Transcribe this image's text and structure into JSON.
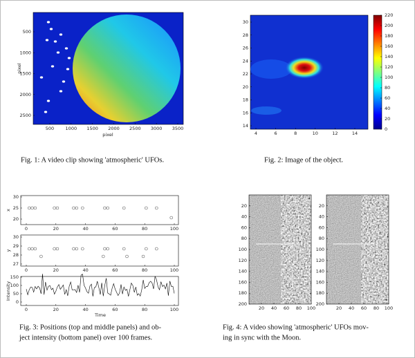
{
  "fig1": {
    "caption": "Fig. 1: A video clip showing 'atmospheric' UFOs.",
    "xlabel": "pixel",
    "ylabel": "pixel",
    "xticks": [
      500,
      1000,
      1500,
      2000,
      2500,
      3000,
      3500
    ],
    "yticks": [
      500,
      1000,
      1500,
      2000,
      2500
    ]
  },
  "fig2": {
    "caption": "Fig. 2: Image of the object.",
    "xticks": [
      4,
      6,
      8,
      10,
      12,
      14
    ],
    "yticks": [
      14,
      16,
      18,
      20,
      22,
      24,
      26,
      28,
      30
    ],
    "colorbar_ticks": [
      0,
      20,
      40,
      60,
      80,
      100,
      120,
      140,
      160,
      180,
      200,
      220
    ]
  },
  "fig3": {
    "caption_lines": [
      "Fig. 3: Positions (top and middle panels) and ob-",
      "ject intensity (bottom panel) over 100 frames."
    ],
    "panels": [
      {
        "ylabel": "x",
        "yticks": [
          20,
          25,
          30
        ]
      },
      {
        "ylabel": "y",
        "yticks": [
          27,
          28,
          29,
          30
        ]
      },
      {
        "ylabel": "Intensity",
        "yticks": [
          0,
          50,
          100,
          150
        ]
      }
    ],
    "xticks": [
      0,
      20,
      40,
      60,
      80,
      100
    ],
    "xlabel": "Time"
  },
  "fig4": {
    "caption_lines": [
      "Fig. 4: A video showing 'atmospheric' UFOs mov-",
      "ing in sync with the Moon."
    ],
    "yticks": [
      20,
      40,
      60,
      80,
      100,
      120,
      140,
      160,
      180,
      200
    ],
    "xticks": [
      20,
      40,
      60,
      80,
      100
    ]
  }
}
